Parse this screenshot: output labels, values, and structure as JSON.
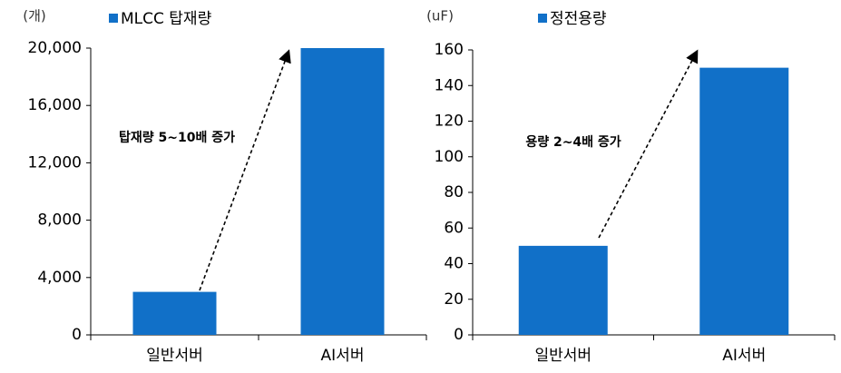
{
  "chart_data": [
    {
      "type": "bar",
      "y_unit": "(개)",
      "annotation": "탑재량 5~10배 증가",
      "categories": [
        "일반서버",
        "AI서버"
      ],
      "series": [
        {
          "name": "MLCC 탑재량",
          "color": "#1170c8",
          "values": [
            3000,
            20000
          ]
        }
      ],
      "ylim": [
        0,
        20000
      ],
      "yticks": [
        0,
        {
          "value": 4000,
          "label": "4,000"
        },
        {
          "value": 8000,
          "label": "8,000"
        },
        {
          "value": 12000,
          "label": "12,000"
        },
        {
          "value": 16000,
          "label": "16,000"
        },
        {
          "value": 20000,
          "label": "20,000"
        }
      ]
    },
    {
      "type": "bar",
      "y_unit": "(uF)",
      "annotation": "용량 2~4배 증가",
      "categories": [
        "일반서버",
        "AI서버"
      ],
      "series": [
        {
          "name": "정전용량",
          "color": "#1170c8",
          "values": [
            50,
            150
          ]
        }
      ],
      "ylim": [
        0,
        160
      ],
      "yticks": [
        0,
        20,
        40,
        60,
        80,
        100,
        120,
        140,
        160
      ]
    }
  ]
}
